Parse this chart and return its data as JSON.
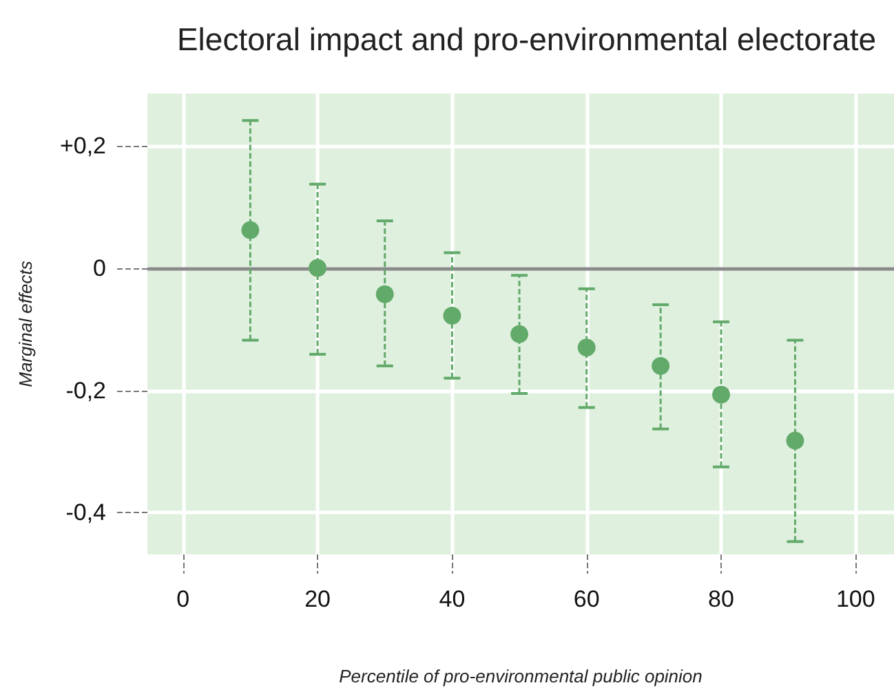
{
  "chart_data": {
    "type": "scatter",
    "title": "Electoral impact and pro-environmental electorate",
    "xlabel": "Percentile of pro-environmental public opinion",
    "ylabel": "Marginal effects",
    "x": [
      10,
      20,
      30,
      40,
      50,
      60,
      71,
      80,
      91
    ],
    "values": [
      0.062,
      0,
      -0.043,
      -0.078,
      -0.108,
      -0.13,
      -0.16,
      -0.207,
      -0.282
    ],
    "errors": [
      [
        -0.118,
        0.241
      ],
      [
        -0.141,
        0.137
      ],
      [
        -0.16,
        0.077
      ],
      [
        -0.18,
        0.025
      ],
      [
        -0.205,
        -0.012
      ],
      [
        -0.228,
        -0.034
      ],
      [
        -0.263,
        -0.06
      ],
      [
        -0.325,
        -0.088
      ],
      [
        -0.447,
        -0.118
      ]
    ],
    "color": "#62aa6a",
    "marker": "circle",
    "xlim": [
      -5.3,
      105.7
    ],
    "ylim": [
      -0.468,
      0.285
    ],
    "xticks": [
      0,
      20,
      40,
      60,
      80,
      100
    ],
    "yticks": [
      {
        "value": -0.4,
        "label": "-0,4"
      },
      {
        "value": -0.2,
        "label": "-0,2"
      },
      {
        "value": 0,
        "label": "0"
      },
      {
        "value": 0.2,
        "label": "+0,2"
      }
    ],
    "grid": true,
    "ref_lines": [
      {
        "axis": "y",
        "value": 0,
        "label": null,
        "color": "#8a8a8a"
      }
    ]
  }
}
